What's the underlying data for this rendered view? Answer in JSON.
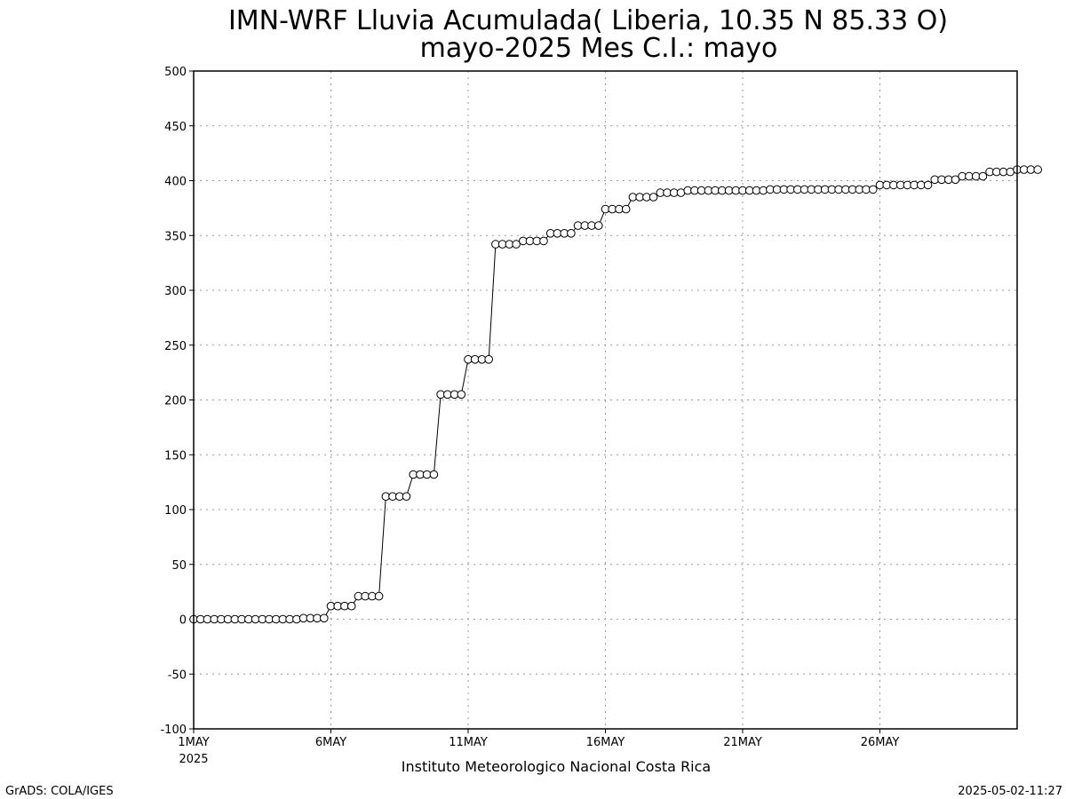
{
  "chart_data": {
    "type": "line",
    "title": "IMN-WRF  Lluvia Acumulada( Liberia, 10.35  N 85.33  O)",
    "subtitle": "mayo-2025 Mes C.I.: mayo",
    "xlabel": "Instituto Meteorologico Nacional Costa Rica",
    "ylabel": "",
    "ylim": [
      -100,
      500
    ],
    "y_ticks": [
      -100,
      -50,
      0,
      50,
      100,
      150,
      200,
      250,
      300,
      350,
      400,
      450,
      500
    ],
    "x_range_days": [
      1,
      31
    ],
    "x_tick_labels": [
      {
        "day": 1,
        "label": "1MAY",
        "sub": "2025"
      },
      {
        "day": 6,
        "label": "6MAY",
        "sub": ""
      },
      {
        "day": 11,
        "label": "11MAY",
        "sub": ""
      },
      {
        "day": 16,
        "label": "16MAY",
        "sub": ""
      },
      {
        "day": 21,
        "label": "21MAY",
        "sub": ""
      },
      {
        "day": 26,
        "label": "26MAY",
        "sub": ""
      }
    ],
    "grid": true,
    "marker": "open-circle",
    "line_color": "#000000",
    "step_hours": 6,
    "series": [
      {
        "name": "",
        "values": [
          0,
          0,
          0,
          0,
          0,
          0,
          0,
          0,
          0,
          0,
          0,
          0,
          0,
          0,
          0,
          0,
          1,
          1,
          1,
          1,
          12,
          12,
          12,
          12,
          21,
          21,
          21,
          21,
          112,
          112,
          112,
          112,
          132,
          132,
          132,
          132,
          205,
          205,
          205,
          205,
          237,
          237,
          237,
          237,
          342,
          342,
          342,
          342,
          345,
          345,
          345,
          345,
          352,
          352,
          352,
          352,
          359,
          359,
          359,
          359,
          374,
          374,
          374,
          374,
          385,
          385,
          385,
          385,
          389,
          389,
          389,
          389,
          391,
          391,
          391,
          391,
          391,
          391,
          391,
          391,
          391,
          391,
          391,
          391,
          392,
          392,
          392,
          392,
          392,
          392,
          392,
          392,
          392,
          392,
          392,
          392,
          392,
          392,
          392,
          392,
          396,
          396,
          396,
          396,
          396,
          396,
          396,
          396,
          401,
          401,
          401,
          401,
          404,
          404,
          404,
          404,
          408,
          408,
          408,
          408,
          410,
          410,
          410,
          410
        ]
      }
    ]
  },
  "footer": {
    "left": "GrADS: COLA/IGES",
    "right": "2025-05-02-11:27"
  }
}
